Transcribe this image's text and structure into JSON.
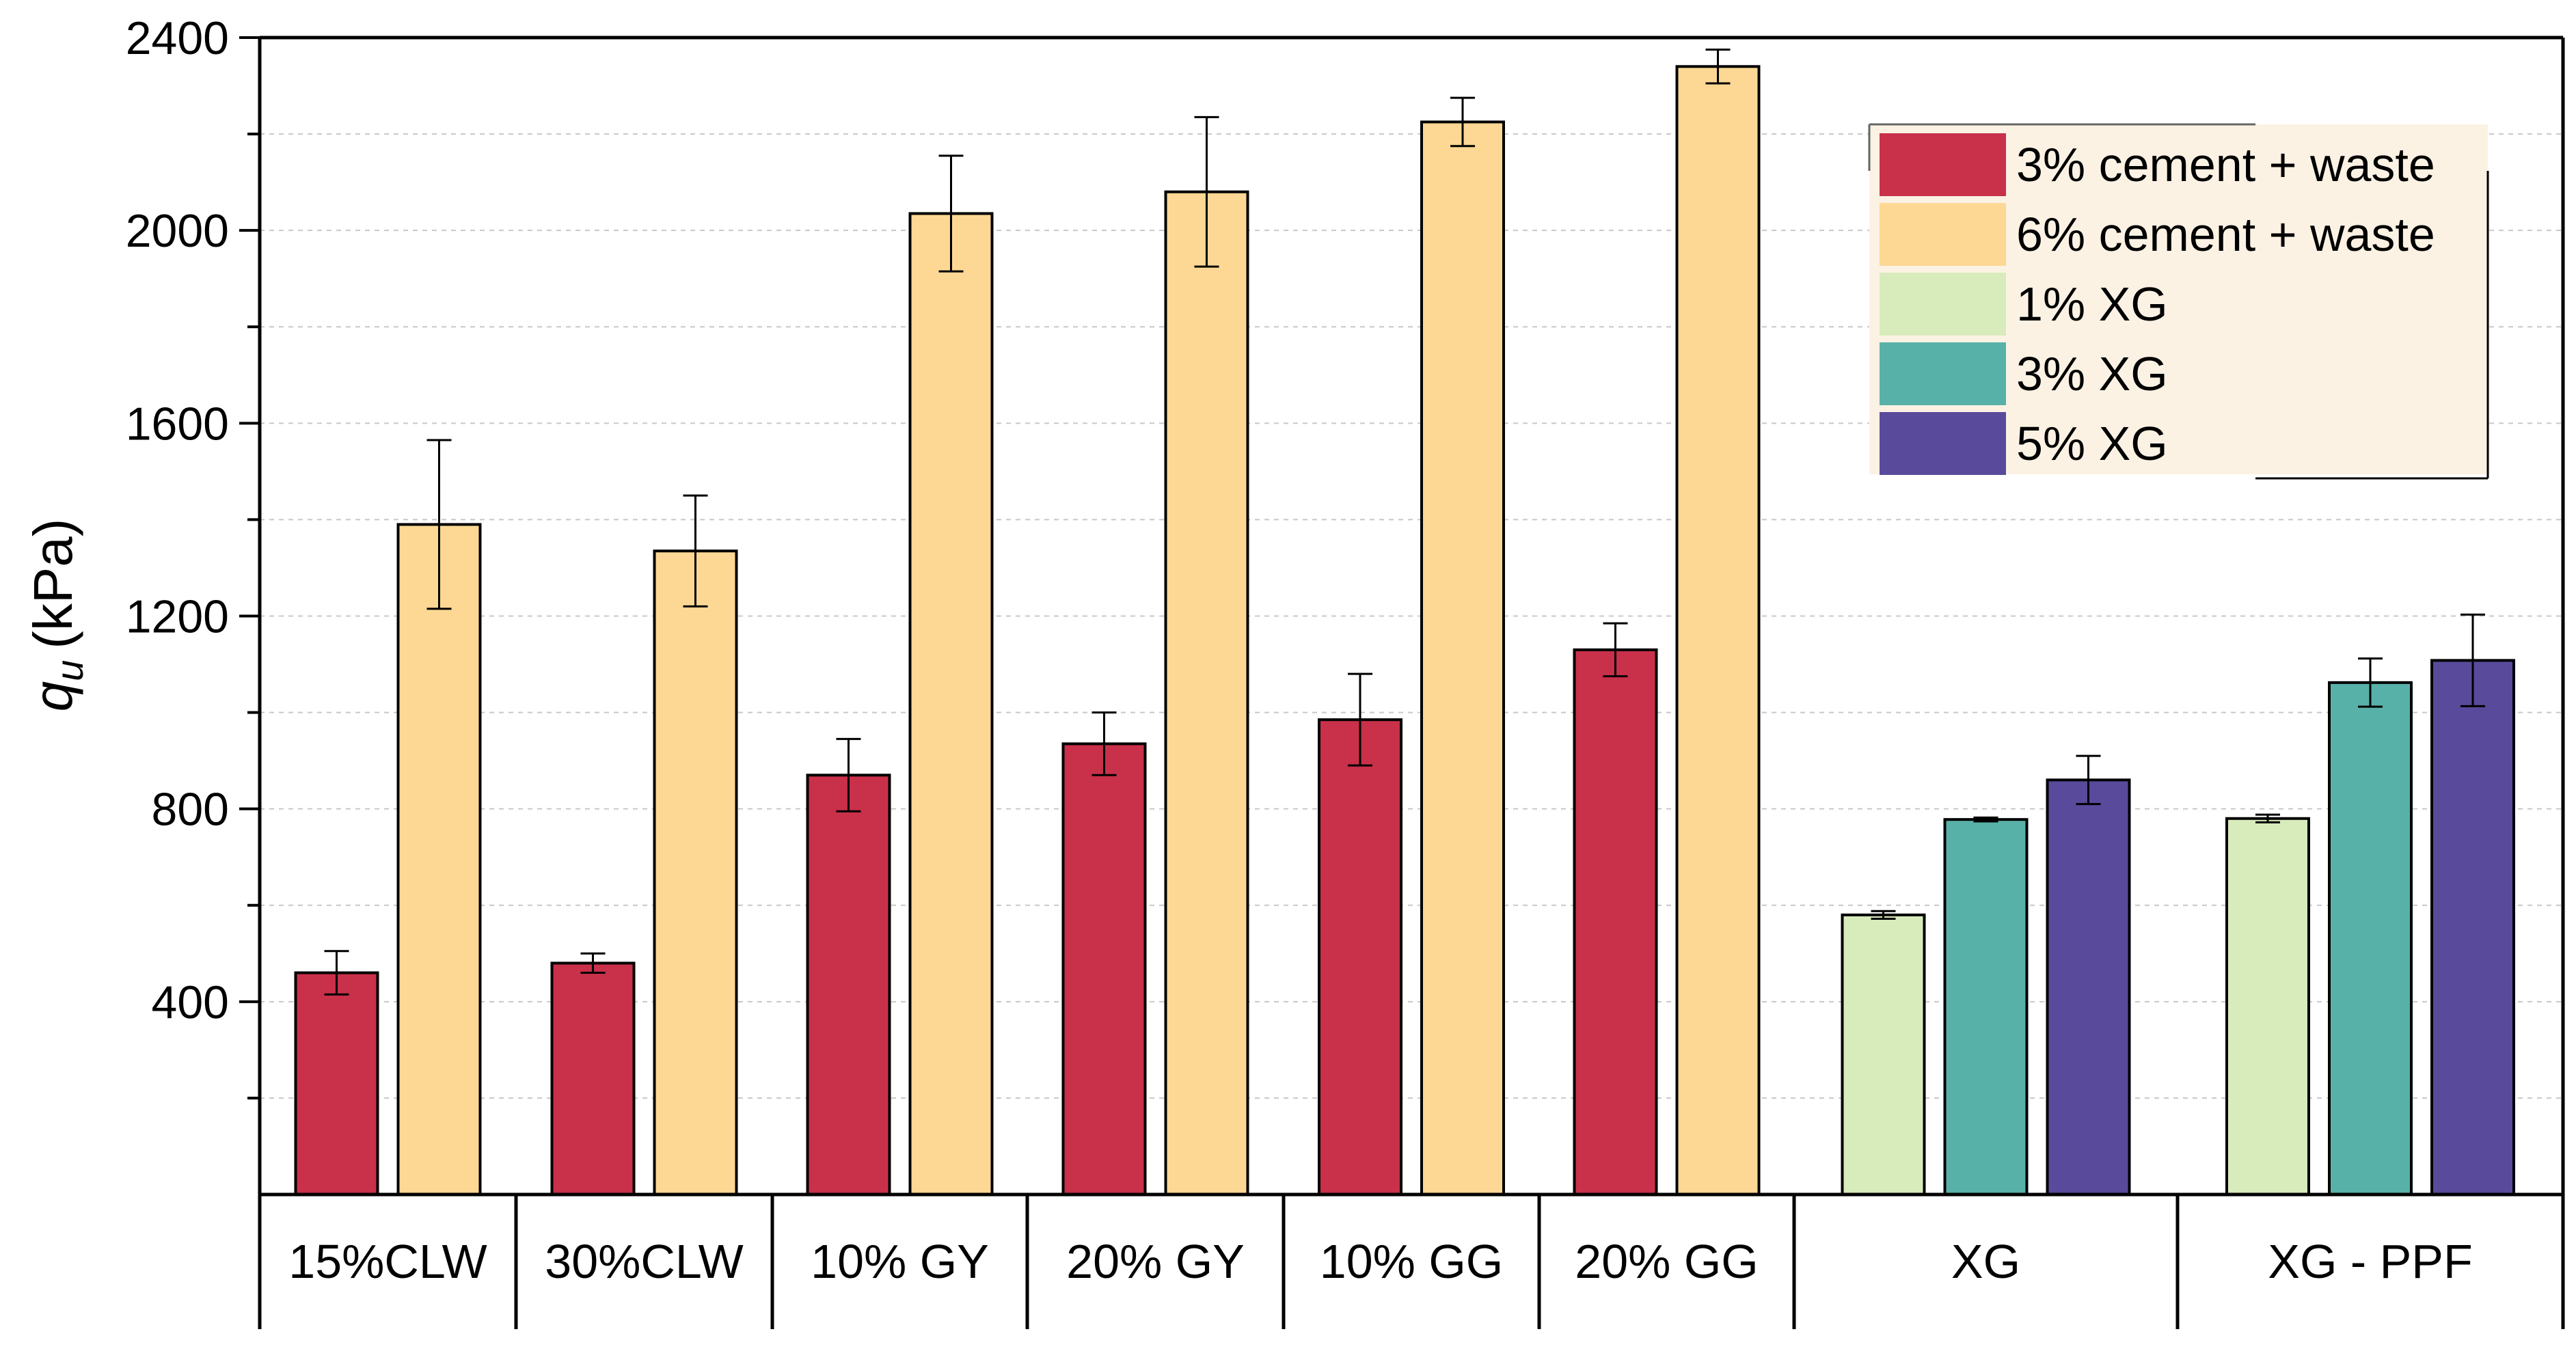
{
  "chart_data": {
    "type": "bar",
    "title": "",
    "xlabel": "",
    "ylabel": {
      "symbol": "q",
      "subscript": "u",
      "unit": "(kPa)"
    },
    "ylim": [
      0,
      2400
    ],
    "yticks": [
      400,
      800,
      1200,
      1600,
      2000,
      2400
    ],
    "grid": "horizontal dashed",
    "legend_position": "top-right",
    "groups": [
      {
        "label": "15%CLW",
        "bars": [
          {
            "series": "3% cement + waste",
            "value": 460,
            "error": 45
          },
          {
            "series": "6% cement + waste",
            "value": 1390,
            "error": 175
          }
        ]
      },
      {
        "label": "30%CLW",
        "bars": [
          {
            "series": "3% cement + waste",
            "value": 480,
            "error": 20
          },
          {
            "series": "6% cement + waste",
            "value": 1335,
            "error": 115
          }
        ]
      },
      {
        "label": "10% GY",
        "bars": [
          {
            "series": "3% cement + waste",
            "value": 870,
            "error": 75
          },
          {
            "series": "6% cement + waste",
            "value": 2035,
            "error": 120
          }
        ]
      },
      {
        "label": "20% GY",
        "bars": [
          {
            "series": "3% cement + waste",
            "value": 935,
            "error": 65
          },
          {
            "series": "6% cement + waste",
            "value": 2080,
            "error": 155
          }
        ]
      },
      {
        "label": "10% GG",
        "bars": [
          {
            "series": "3% cement + waste",
            "value": 985,
            "error": 95
          },
          {
            "series": "6% cement + waste",
            "value": 2225,
            "error": 50
          }
        ]
      },
      {
        "label": "20% GG",
        "bars": [
          {
            "series": "3% cement + waste",
            "value": 1130,
            "error": 55
          },
          {
            "series": "6% cement + waste",
            "value": 2340,
            "error": 35
          }
        ]
      },
      {
        "label": "XG",
        "bars": [
          {
            "series": "1% XG",
            "value": 580,
            "error": 8
          },
          {
            "series": "3% XG",
            "value": 778,
            "error": 4
          },
          {
            "series": "5% XG",
            "value": 860,
            "error": 50
          }
        ]
      },
      {
        "label": "XG - PPF",
        "bars": [
          {
            "series": "1% XG",
            "value": 780,
            "error": 8
          },
          {
            "series": "3% XG",
            "value": 1062,
            "error": 50
          },
          {
            "series": "5% XG",
            "value": 1108,
            "error": 95
          }
        ]
      }
    ],
    "series": [
      {
        "name": "3% cement + waste",
        "color": "#c9304a"
      },
      {
        "name": "6% cement + waste",
        "color": "#fcd894"
      },
      {
        "name": "1% XG",
        "color": "#d8ebbb"
      },
      {
        "name": "3% XG",
        "color": "#58b1a8"
      },
      {
        "name": "5% XG",
        "color": "#594a9b"
      }
    ]
  }
}
